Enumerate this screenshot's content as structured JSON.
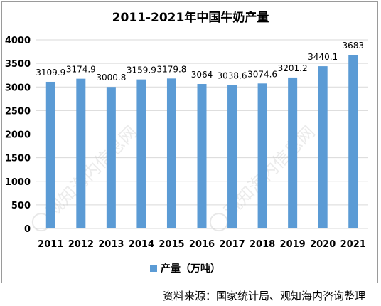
{
  "source_note": "资料来源：国家统计局、观知海内咨询整理",
  "watermark": "观知海内信息网",
  "chart_data": {
    "type": "bar",
    "title": "2011-2021年中国牛奶产量",
    "categories": [
      "2011",
      "2012",
      "2013",
      "2014",
      "2015",
      "2016",
      "2017",
      "2018",
      "2019",
      "2020",
      "2021"
    ],
    "series": [
      {
        "name": "产量（万吨）",
        "values": [
          3109.9,
          3174.9,
          3000.8,
          3159.9,
          3179.8,
          3064,
          3038.6,
          3074.6,
          3201.2,
          3440.1,
          3683
        ]
      }
    ],
    "data_labels": [
      "3109.9",
      "3174.9",
      "3000.8",
      "3159.9",
      "3179.8",
      "3064",
      "3038.6",
      "3074.6",
      "3201.2",
      "3440.1",
      "3683"
    ],
    "ylim": [
      0,
      4000
    ],
    "yticks": [
      0,
      500,
      1000,
      1500,
      2000,
      2500,
      3000,
      3500,
      4000
    ],
    "grid": true,
    "legend_position": "bottom",
    "bar_color": "#5b9bd5"
  }
}
